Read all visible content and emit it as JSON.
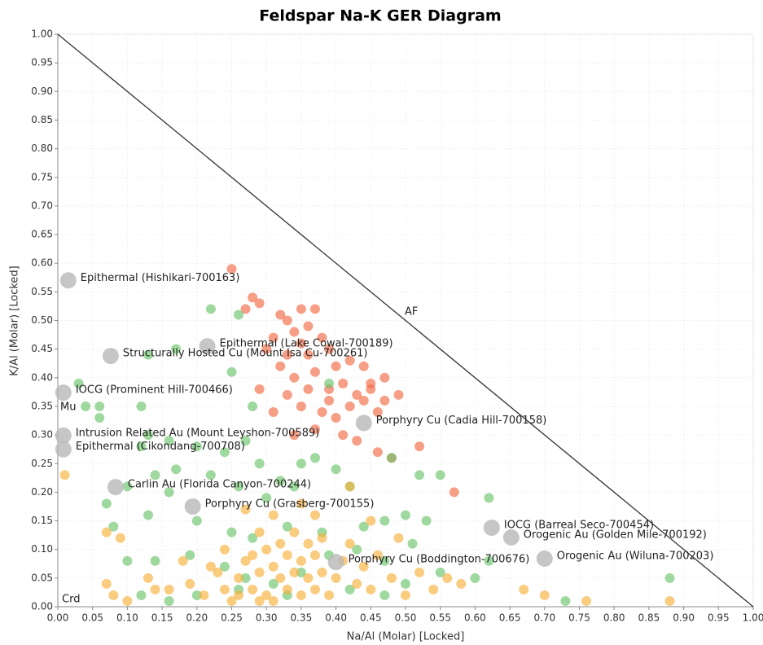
{
  "chart_data": {
    "type": "scatter",
    "title": "Feldspar Na-K GER Diagram",
    "x_label": "Na/Al (Molar) [Locked]",
    "y_label": "K/Al (Molar) [Locked]",
    "xlim": [
      0,
      1
    ],
    "ylim": [
      0,
      1
    ],
    "xticks": [
      {
        "value": 0,
        "label": "0.00"
      },
      {
        "value": 0.05,
        "label": "0.05"
      },
      {
        "value": 0.1,
        "label": "0.10"
      },
      {
        "value": 0.15,
        "label": "0.15"
      },
      {
        "value": 0.2,
        "label": "0.20"
      },
      {
        "value": 0.25,
        "label": "0.25"
      },
      {
        "value": 0.3,
        "label": "0.30"
      },
      {
        "value": 0.35,
        "label": "0.35"
      },
      {
        "value": 0.4,
        "label": "0.40"
      },
      {
        "value": 0.45,
        "label": "0.45"
      },
      {
        "value": 0.5,
        "label": "0.50"
      },
      {
        "value": 0.55,
        "label": "0.55"
      },
      {
        "value": 0.6,
        "label": "0.60"
      },
      {
        "value": 0.65,
        "label": "0.65"
      },
      {
        "value": 0.7,
        "label": "0.70"
      },
      {
        "value": 0.75,
        "label": "0.75"
      },
      {
        "value": 0.8,
        "label": "0.80"
      },
      {
        "value": 0.85,
        "label": "0.85"
      },
      {
        "value": 0.9,
        "label": "0.90"
      },
      {
        "value": 0.95,
        "label": "0.95"
      },
      {
        "value": 1,
        "label": "1.00"
      }
    ],
    "yticks": [
      {
        "value": 0,
        "label": "0.00"
      },
      {
        "value": 0.05,
        "label": "0.05"
      },
      {
        "value": 0.1,
        "label": "0.10"
      },
      {
        "value": 0.15,
        "label": "0.15"
      },
      {
        "value": 0.2,
        "label": "0.20"
      },
      {
        "value": 0.25,
        "label": "0.25"
      },
      {
        "value": 0.3,
        "label": "0.30"
      },
      {
        "value": 0.35,
        "label": "0.35"
      },
      {
        "value": 0.4,
        "label": "0.40"
      },
      {
        "value": 0.45,
        "label": "0.45"
      },
      {
        "value": 0.5,
        "label": "0.50"
      },
      {
        "value": 0.55,
        "label": "0.55"
      },
      {
        "value": 0.6,
        "label": "0.60"
      },
      {
        "value": 0.65,
        "label": "0.65"
      },
      {
        "value": 0.7,
        "label": "0.70"
      },
      {
        "value": 0.75,
        "label": "0.75"
      },
      {
        "value": 0.8,
        "label": "0.80"
      },
      {
        "value": 0.85,
        "label": "0.85"
      },
      {
        "value": 0.9,
        "label": "0.90"
      },
      {
        "value": 0.95,
        "label": "0.95"
      },
      {
        "value": 1,
        "label": "1.00"
      }
    ],
    "grid": true,
    "opacity": 0.65,
    "reference_line": {
      "x": [
        0,
        1
      ],
      "y": [
        1,
        0
      ],
      "color": "#333"
    },
    "region_labels": [
      "AF",
      "Mu",
      "Crd"
    ],
    "series": [
      {
        "color": "#f26b45",
        "x": [
          0.25,
          0.28,
          0.29,
          0.27,
          0.32,
          0.35,
          0.37,
          0.33,
          0.34,
          0.36,
          0.31,
          0.35,
          0.38,
          0.3,
          0.33,
          0.36,
          0.39,
          0.32,
          0.34,
          0.37,
          0.4,
          0.42,
          0.44,
          0.29,
          0.33,
          0.36,
          0.39,
          0.41,
          0.43,
          0.45,
          0.47,
          0.49,
          0.35,
          0.38,
          0.4,
          0.42,
          0.44,
          0.46,
          0.31,
          0.37,
          0.41,
          0.43,
          0.46,
          0.48,
          0.52,
          0.57,
          0.34,
          0.39,
          0.45,
          0.47
        ],
        "values": [
          0.59,
          0.54,
          0.53,
          0.52,
          0.51,
          0.52,
          0.52,
          0.5,
          0.48,
          0.49,
          0.47,
          0.46,
          0.47,
          0.45,
          0.44,
          0.44,
          0.45,
          0.42,
          0.4,
          0.41,
          0.42,
          0.43,
          0.42,
          0.38,
          0.37,
          0.38,
          0.38,
          0.39,
          0.37,
          0.38,
          0.36,
          0.37,
          0.35,
          0.34,
          0.33,
          0.35,
          0.36,
          0.34,
          0.34,
          0.31,
          0.3,
          0.29,
          0.27,
          0.26,
          0.28,
          0.2,
          0.3,
          0.36,
          0.39,
          0.4
        ]
      },
      {
        "color": "#6cc46c",
        "x": [
          0.22,
          0.26,
          0.17,
          0.13,
          0.03,
          0.04,
          0.06,
          0.06,
          0.12,
          0.13,
          0.16,
          0.2,
          0.24,
          0.27,
          0.29,
          0.32,
          0.35,
          0.37,
          0.4,
          0.12,
          0.14,
          0.17,
          0.22,
          0.26,
          0.3,
          0.34,
          0.42,
          0.07,
          0.1,
          0.16,
          0.13,
          0.2,
          0.25,
          0.28,
          0.33,
          0.38,
          0.44,
          0.47,
          0.5,
          0.53,
          0.48,
          0.52,
          0.55,
          0.62,
          0.08,
          0.1,
          0.14,
          0.19,
          0.24,
          0.27,
          0.31,
          0.35,
          0.39,
          0.43,
          0.47,
          0.51,
          0.5,
          0.55,
          0.6,
          0.62,
          0.73,
          0.88,
          0.12,
          0.16,
          0.2,
          0.26,
          0.33,
          0.42,
          0.47,
          0.28,
          0.25,
          0.39
        ],
        "values": [
          0.52,
          0.51,
          0.45,
          0.44,
          0.39,
          0.35,
          0.35,
          0.33,
          0.35,
          0.3,
          0.29,
          0.28,
          0.27,
          0.29,
          0.25,
          0.22,
          0.25,
          0.26,
          0.24,
          0.28,
          0.23,
          0.24,
          0.23,
          0.21,
          0.19,
          0.21,
          0.21,
          0.18,
          0.21,
          0.2,
          0.16,
          0.15,
          0.13,
          0.12,
          0.14,
          0.13,
          0.14,
          0.15,
          0.16,
          0.15,
          0.26,
          0.23,
          0.23,
          0.19,
          0.14,
          0.08,
          0.08,
          0.09,
          0.07,
          0.05,
          0.04,
          0.06,
          0.09,
          0.1,
          0.08,
          0.11,
          0.04,
          0.06,
          0.05,
          0.08,
          0.01,
          0.05,
          0.02,
          0.01,
          0.02,
          0.03,
          0.02,
          0.03,
          0.02,
          0.35,
          0.41,
          0.39
        ]
      },
      {
        "color": "#f7b03a",
        "x": [
          0.01,
          0.07,
          0.09,
          0.07,
          0.08,
          0.1,
          0.13,
          0.16,
          0.19,
          0.21,
          0.23,
          0.24,
          0.25,
          0.26,
          0.27,
          0.28,
          0.29,
          0.3,
          0.3,
          0.31,
          0.32,
          0.32,
          0.33,
          0.33,
          0.34,
          0.34,
          0.35,
          0.35,
          0.36,
          0.36,
          0.37,
          0.37,
          0.38,
          0.38,
          0.39,
          0.4,
          0.41,
          0.42,
          0.43,
          0.44,
          0.45,
          0.46,
          0.48,
          0.49,
          0.5,
          0.52,
          0.54,
          0.56,
          0.58,
          0.67,
          0.7,
          0.76,
          0.88,
          0.29,
          0.31,
          0.35,
          0.27,
          0.18,
          0.14,
          0.22,
          0.26,
          0.29,
          0.31,
          0.28,
          0.24,
          0.42,
          0.37,
          0.45
        ],
        "values": [
          0.23,
          0.13,
          0.12,
          0.04,
          0.02,
          0.01,
          0.05,
          0.03,
          0.04,
          0.02,
          0.06,
          0.03,
          0.01,
          0.05,
          0.08,
          0.03,
          0.06,
          0.1,
          0.02,
          0.07,
          0.05,
          0.11,
          0.03,
          0.09,
          0.06,
          0.13,
          0.02,
          0.08,
          0.05,
          0.11,
          0.03,
          0.09,
          0.06,
          0.12,
          0.02,
          0.05,
          0.08,
          0.11,
          0.04,
          0.07,
          0.03,
          0.09,
          0.05,
          0.12,
          0.02,
          0.06,
          0.03,
          0.05,
          0.04,
          0.03,
          0.02,
          0.01,
          0.01,
          0.13,
          0.16,
          0.18,
          0.17,
          0.08,
          0.03,
          0.07,
          0.02,
          0.01,
          0.01,
          0.09,
          0.1,
          0.21,
          0.16,
          0.15
        ]
      }
    ],
    "annotation_color": "#b8b8b8",
    "annotations": [
      {
        "label": "Epithermal (Hishikari-700163)",
        "x": 0.015,
        "y": 0.57
      },
      {
        "label": "Epithermal (Lake Cowal-700189)",
        "x": 0.215,
        "y": 0.455
      },
      {
        "label": "Structurally Hosted Cu (Mount Isa Cu-700261)",
        "x": 0.076,
        "y": 0.438
      },
      {
        "label": "IOCG (Prominent Hill-700466)",
        "x": 0.008,
        "y": 0.374
      },
      {
        "label": "Intrusion Related Au (Mount Leyshon-700589)",
        "x": 0.008,
        "y": 0.299
      },
      {
        "label": "Epithermal (Cikondang-700708)",
        "x": 0.008,
        "y": 0.275
      },
      {
        "label": "Carlin Au (Florida Canyon-700244)",
        "x": 0.083,
        "y": 0.209
      },
      {
        "label": "Porphyry Cu (Grasberg-700155)",
        "x": 0.194,
        "y": 0.175
      },
      {
        "label": "Porphyry Cu (Cadia Hill-700158)",
        "x": 0.44,
        "y": 0.321
      },
      {
        "label": "IOCG (Barreal Seco-700454)",
        "x": 0.624,
        "y": 0.138
      },
      {
        "label": "Orogenic Au (Golden Mile-700192)",
        "x": 0.652,
        "y": 0.121
      },
      {
        "label": "Orogenic Au (Wiluna-700203)",
        "x": 0.7,
        "y": 0.084
      },
      {
        "label": "Porphyry Cu (Boddington-700676)",
        "x": 0.4,
        "y": 0.078
      }
    ]
  }
}
